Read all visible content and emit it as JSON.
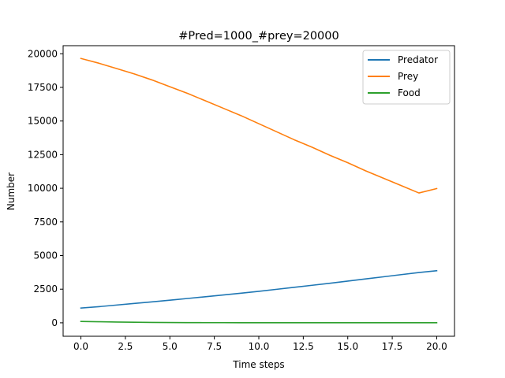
{
  "chart_data": {
    "type": "line",
    "title": "#Pred=1000_#prey=20000",
    "xlabel": "Time steps",
    "ylabel": "Number",
    "xlim": [
      -1,
      21
    ],
    "ylim": [
      -1000,
      20600
    ],
    "x_ticks": [
      0,
      2.5,
      5,
      7.5,
      10,
      12.5,
      15,
      17.5,
      20
    ],
    "x_tick_labels": [
      "0.0",
      "2.5",
      "5.0",
      "7.5",
      "10.0",
      "12.5",
      "15.0",
      "17.5",
      "20.0"
    ],
    "y_ticks": [
      0,
      2500,
      5000,
      7500,
      10000,
      12500,
      15000,
      17500,
      20000
    ],
    "y_tick_labels": [
      "0",
      "2500",
      "5000",
      "7500",
      "10000",
      "12500",
      "15000",
      "17500",
      "20000"
    ],
    "x": [
      0,
      1,
      2,
      3,
      4,
      5,
      6,
      7,
      8,
      9,
      10,
      11,
      12,
      13,
      14,
      15,
      16,
      17,
      18,
      19,
      20
    ],
    "series": [
      {
        "name": "Predator",
        "color": "#1f77b4",
        "values": [
          1100,
          1200,
          1320,
          1440,
          1560,
          1680,
          1810,
          1940,
          2070,
          2200,
          2340,
          2490,
          2640,
          2790,
          2940,
          3100,
          3260,
          3420,
          3580,
          3740,
          3870
        ]
      },
      {
        "name": "Prey",
        "color": "#ff7f0e",
        "values": [
          19650,
          19300,
          18900,
          18500,
          18050,
          17550,
          17050,
          16500,
          15950,
          15400,
          14800,
          14200,
          13600,
          13050,
          12450,
          11900,
          11300,
          10750,
          10200,
          9650,
          9980
        ]
      },
      {
        "name": "Food",
        "color": "#2ca02c",
        "values": [
          100,
          80,
          60,
          40,
          30,
          20,
          15,
          10,
          10,
          5,
          5,
          5,
          5,
          5,
          5,
          5,
          5,
          5,
          5,
          5,
          5
        ]
      }
    ],
    "legend_position": "top-right",
    "grid": false
  }
}
